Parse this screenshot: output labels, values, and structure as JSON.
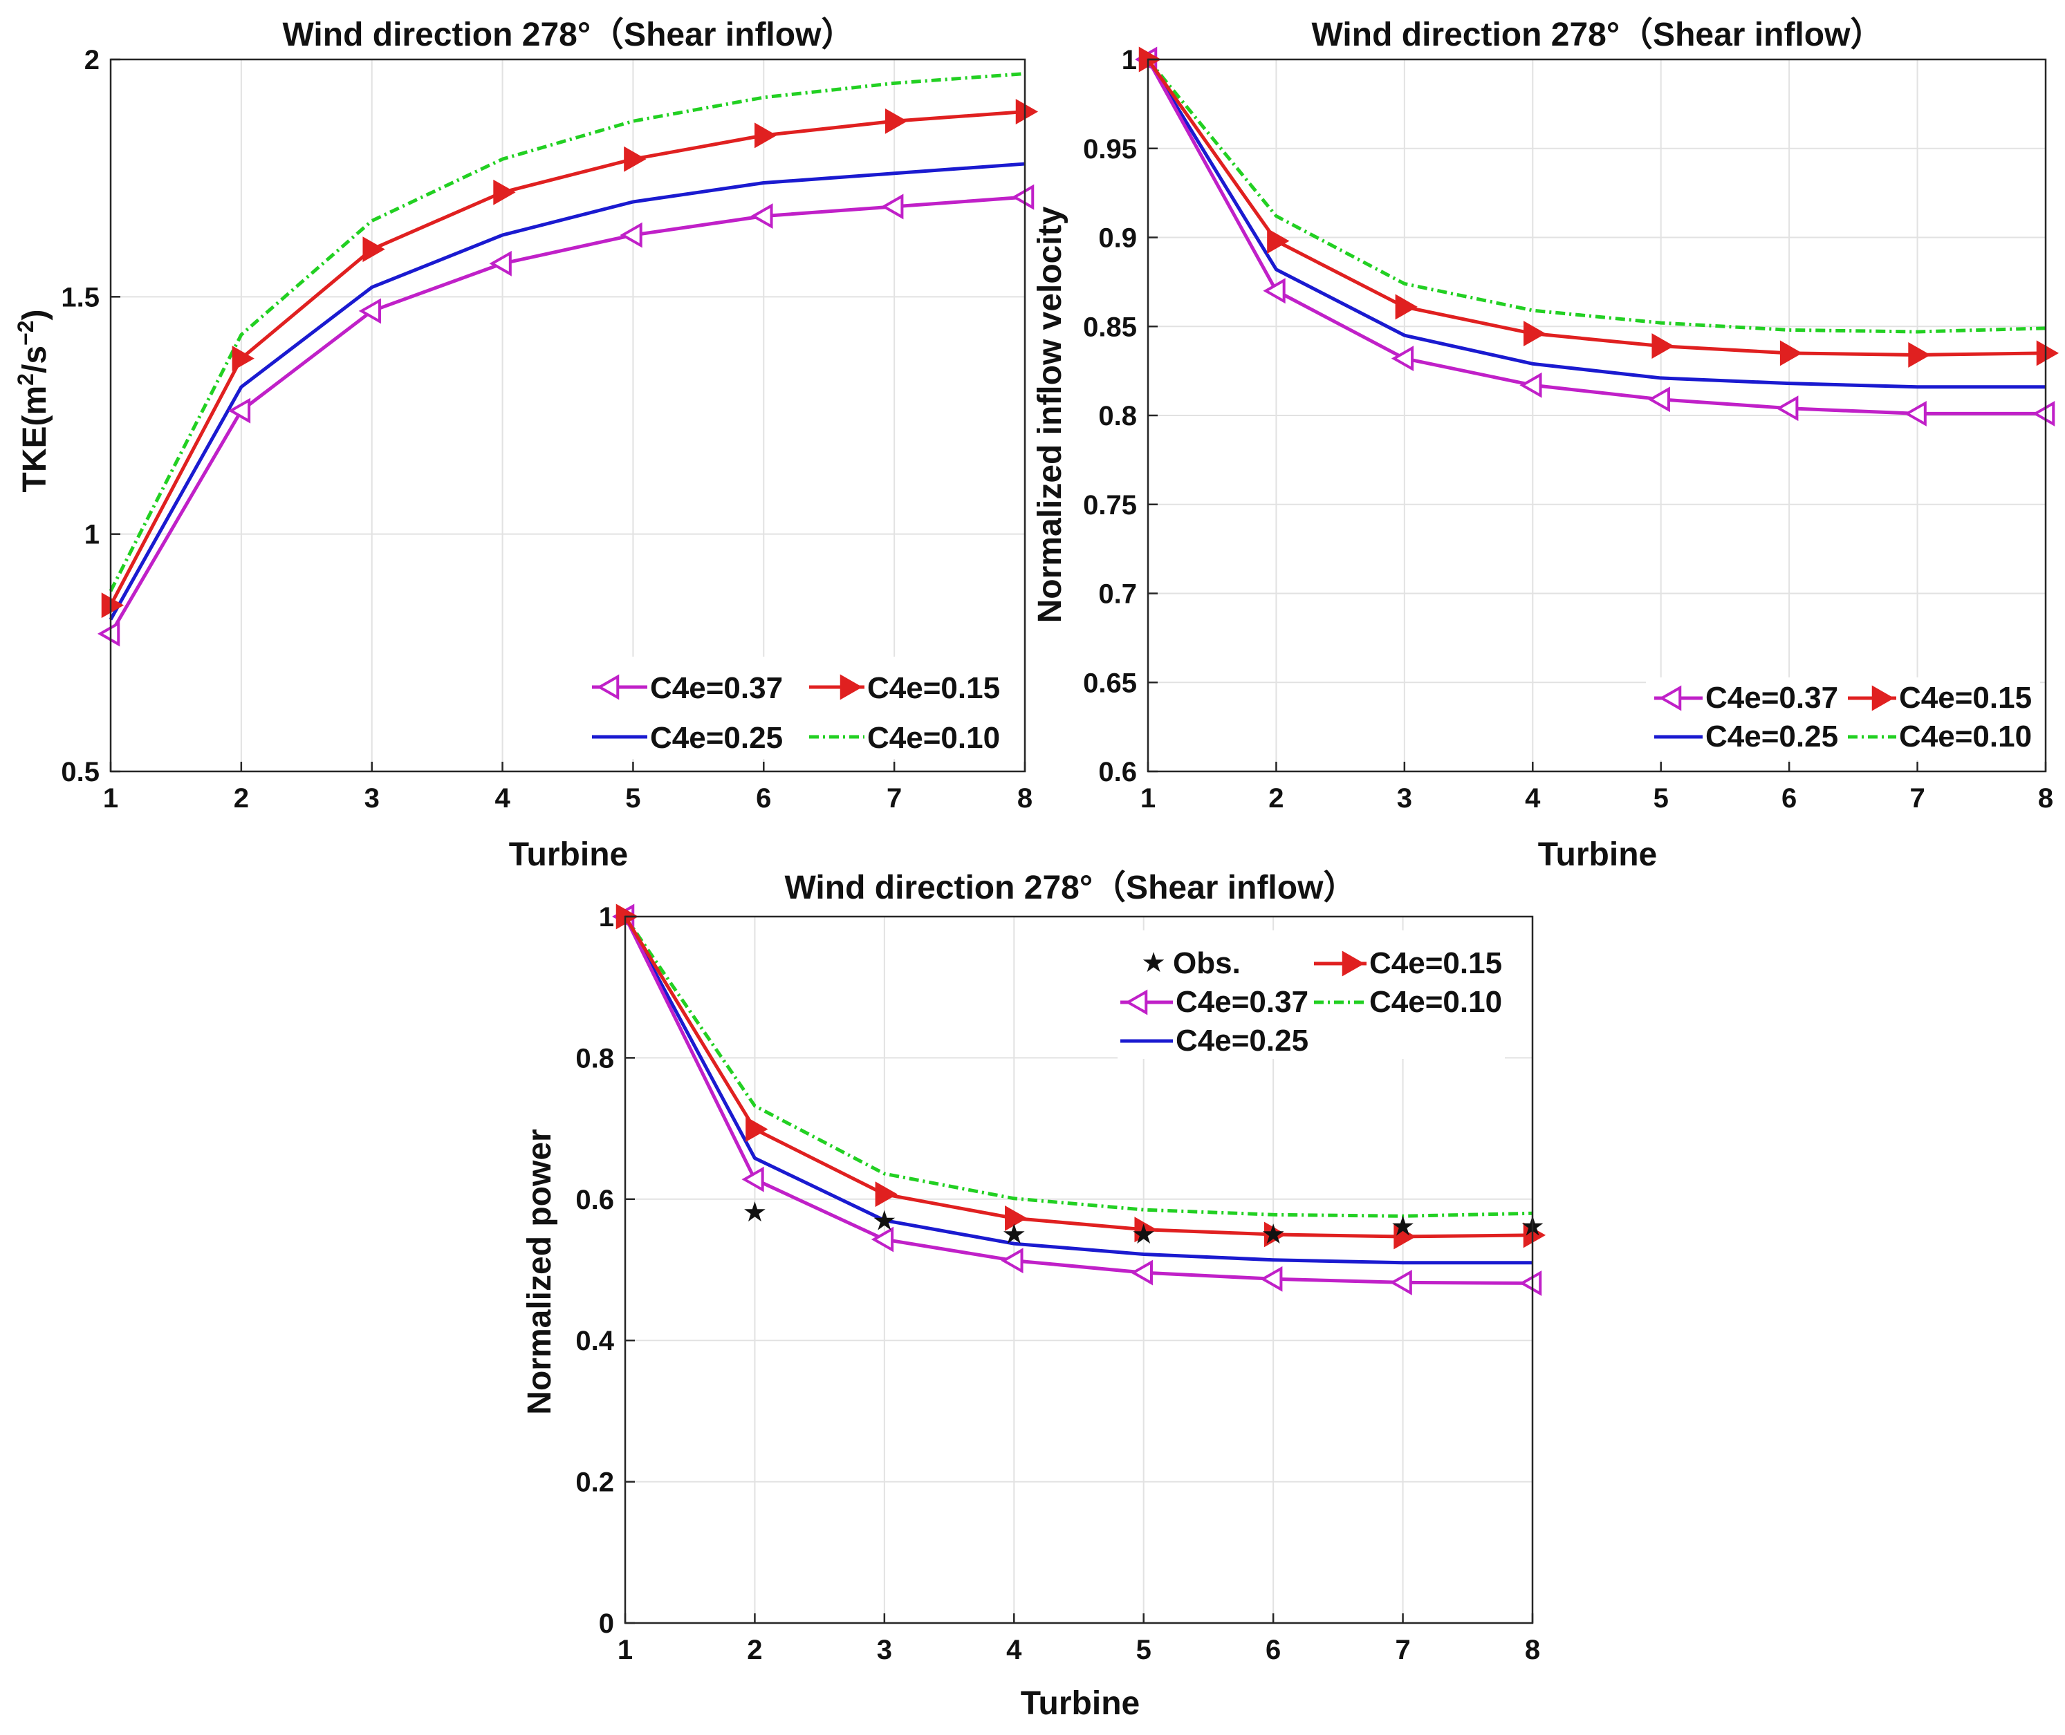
{
  "colors": {
    "C4e=0.37": "#c020c8",
    "C4e=0.15": "#e02020",
    "C4e=0.25": "#1a1ad0",
    "C4e=0.10": "#22d022",
    "Obs.": "#000000"
  },
  "chart_data": [
    {
      "id": "tke",
      "type": "line",
      "title": "Wind direction 278°（Shear inflow）",
      "xlabel": "Turbine",
      "ylabel_main": "TKE(m",
      "ylabel_sup1": "2",
      "ylabel_mid": "/s",
      "ylabel_sup2": "−2",
      "ylabel_end": ")",
      "x": [
        1,
        2,
        3,
        4,
        5,
        6,
        7,
        8
      ],
      "xticks": [
        "1",
        "2",
        "3",
        "4",
        "5",
        "6",
        "7",
        "8"
      ],
      "xlim": [
        1,
        8
      ],
      "ylim": [
        0.5,
        2
      ],
      "yticks": [
        0.5,
        1,
        1.5,
        2
      ],
      "ytick_labels": [
        "0.5",
        "1",
        "1.5",
        "2"
      ],
      "legend_position": "bottom-right",
      "series": [
        {
          "name": "C4e=0.37",
          "values": [
            0.79,
            1.26,
            1.47,
            1.57,
            1.63,
            1.67,
            1.69,
            1.71
          ],
          "marker": "left-triangle",
          "dash": ""
        },
        {
          "name": "C4e=0.15",
          "values": [
            0.85,
            1.37,
            1.6,
            1.72,
            1.79,
            1.84,
            1.87,
            1.89
          ],
          "marker": "right-triangle",
          "dash": ""
        },
        {
          "name": "C4e=0.25",
          "values": [
            0.82,
            1.31,
            1.52,
            1.63,
            1.7,
            1.74,
            1.76,
            1.78
          ],
          "marker": "none",
          "dash": ""
        },
        {
          "name": "C4e=0.10",
          "values": [
            0.88,
            1.42,
            1.66,
            1.79,
            1.87,
            1.92,
            1.95,
            1.97
          ],
          "marker": "none",
          "dash": "14 6 3 6"
        }
      ]
    },
    {
      "id": "velocity",
      "type": "line",
      "title": "Wind direction 278°（Shear inflow）",
      "xlabel": "Turbine",
      "ylabel": "Normalized inflow velocity",
      "x": [
        1,
        2,
        3,
        4,
        5,
        6,
        7,
        8
      ],
      "xticks": [
        "1",
        "2",
        "3",
        "4",
        "5",
        "6",
        "7",
        "8"
      ],
      "xlim": [
        1,
        8
      ],
      "ylim": [
        0.6,
        1
      ],
      "yticks": [
        0.6,
        0.65,
        0.7,
        0.75,
        0.8,
        0.85,
        0.9,
        0.95,
        1
      ],
      "ytick_labels": [
        "0.6",
        "0.65",
        "0.7",
        "0.75",
        "0.8",
        "0.85",
        "0.9",
        "0.95",
        "1"
      ],
      "legend_position": "bottom-right",
      "series": [
        {
          "name": "C4e=0.37",
          "values": [
            1.0,
            0.87,
            0.832,
            0.817,
            0.809,
            0.804,
            0.801,
            0.801
          ],
          "marker": "left-triangle",
          "dash": ""
        },
        {
          "name": "C4e=0.15",
          "values": [
            1.0,
            0.898,
            0.861,
            0.846,
            0.839,
            0.835,
            0.834,
            0.835
          ],
          "marker": "right-triangle",
          "dash": ""
        },
        {
          "name": "C4e=0.25",
          "values": [
            1.0,
            0.882,
            0.845,
            0.829,
            0.821,
            0.818,
            0.816,
            0.816
          ],
          "marker": "none",
          "dash": ""
        },
        {
          "name": "C4e=0.10",
          "values": [
            1.0,
            0.912,
            0.874,
            0.859,
            0.852,
            0.848,
            0.847,
            0.849
          ],
          "marker": "none",
          "dash": "14 6 3 6"
        }
      ]
    },
    {
      "id": "power",
      "type": "line",
      "title": "Wind direction 278°（Shear inflow）",
      "xlabel": "Turbine",
      "ylabel": "Normalized power",
      "x": [
        1,
        2,
        3,
        4,
        5,
        6,
        7,
        8
      ],
      "xticks": [
        "1",
        "2",
        "3",
        "4",
        "5",
        "6",
        "7",
        "8"
      ],
      "xlim": [
        1,
        8
      ],
      "ylim": [
        0,
        1
      ],
      "yticks": [
        0,
        0.2,
        0.4,
        0.6,
        0.8,
        1
      ],
      "ytick_labels": [
        "0",
        "0.2",
        "0.4",
        "0.6",
        "0.8",
        "1"
      ],
      "legend_position": "top-right",
      "series": [
        {
          "name": "C4e=0.37",
          "values": [
            1.0,
            0.628,
            0.543,
            0.513,
            0.496,
            0.487,
            0.482,
            0.481
          ],
          "marker": "left-triangle",
          "dash": ""
        },
        {
          "name": "C4e=0.15",
          "values": [
            1.0,
            0.699,
            0.607,
            0.573,
            0.557,
            0.55,
            0.547,
            0.549
          ],
          "marker": "right-triangle",
          "dash": ""
        },
        {
          "name": "C4e=0.25",
          "values": [
            1.0,
            0.658,
            0.57,
            0.537,
            0.522,
            0.514,
            0.51,
            0.51
          ],
          "marker": "none",
          "dash": ""
        },
        {
          "name": "C4e=0.10",
          "values": [
            1.0,
            0.732,
            0.636,
            0.601,
            0.585,
            0.578,
            0.576,
            0.58
          ],
          "marker": "none",
          "dash": "14 6 3 6"
        }
      ],
      "observations": {
        "name": "Obs.",
        "x": [
          2,
          3,
          4,
          5,
          6,
          7,
          8
        ],
        "values": [
          0.582,
          0.57,
          0.551,
          0.551,
          0.551,
          0.562,
          0.562
        ]
      }
    }
  ]
}
